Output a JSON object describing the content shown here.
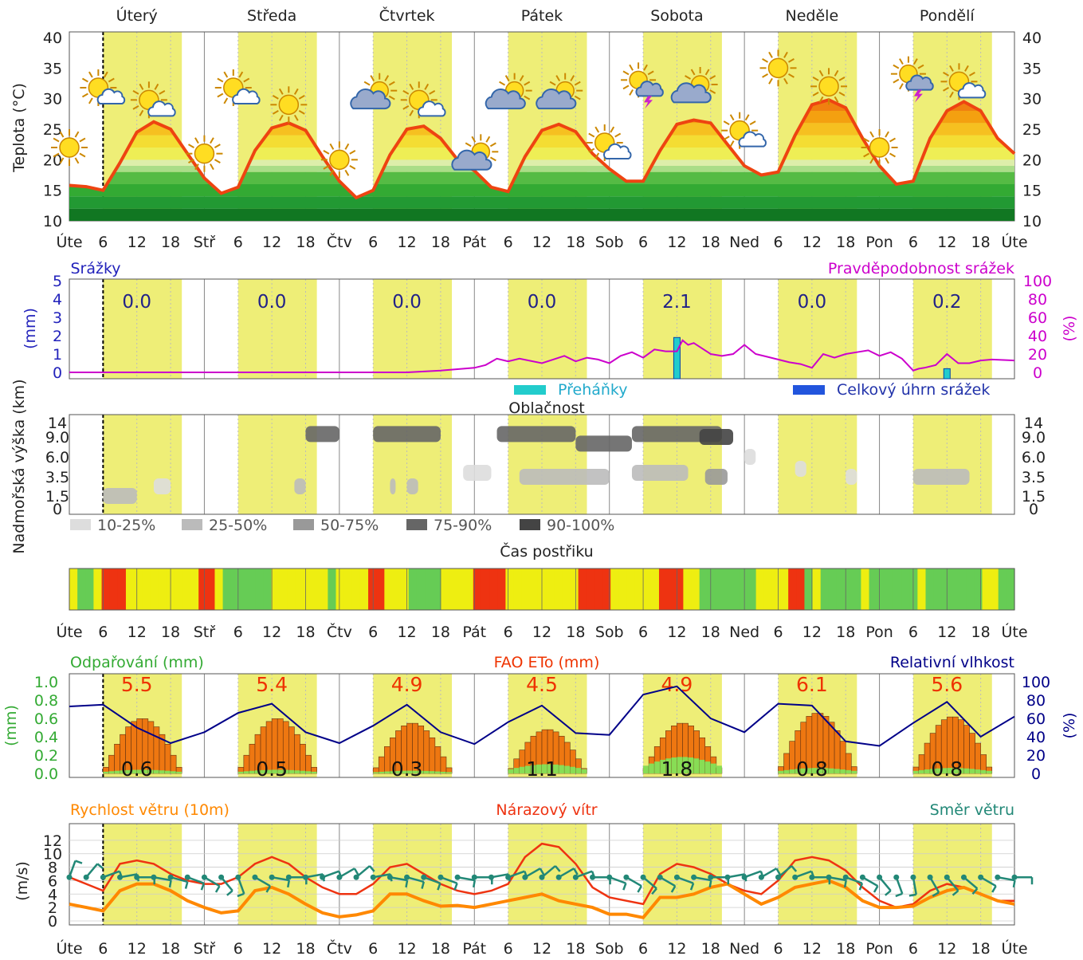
{
  "days": [
    "Úterý",
    "Středa",
    "Čtvrtek",
    "Pátek",
    "Sobota",
    "Neděle",
    "Pondělí"
  ],
  "x_ticks": [
    "Úte",
    "6",
    "12",
    "18",
    "Stř",
    "6",
    "12",
    "18",
    "Čtv",
    "6",
    "12",
    "18",
    "Pát",
    "6",
    "12",
    "18",
    "Sob",
    "6",
    "12",
    "18",
    "Ned",
    "6",
    "12",
    "18",
    "Pon",
    "6",
    "12",
    "18",
    "Úte"
  ],
  "colors": {
    "temp_line": "#ee4411",
    "day_band": "#eeee77",
    "precip": "#2222bb",
    "prob": "#cc00cc",
    "evap": "#33aa33",
    "eto": "#ee3300",
    "rh": "#000088",
    "wind": "#ff8800",
    "gust": "#ee3311",
    "dir": "#228877"
  },
  "chart_data": [
    {
      "type": "line",
      "id": "temperature",
      "ylabel": "Teplota (°C)",
      "ylim": [
        10,
        40
      ],
      "yticks": [
        10,
        15,
        20,
        25,
        30,
        35,
        40
      ],
      "x_unit": "hours from Tuesday 00:00",
      "xlim": [
        0,
        168
      ],
      "series": [
        {
          "x": [
            0,
            3,
            6,
            9,
            12,
            15,
            18,
            21,
            24,
            27,
            30,
            33,
            36,
            39,
            42,
            45,
            48,
            51,
            54,
            57,
            60,
            63,
            66,
            69,
            72,
            75,
            78,
            81,
            84,
            87,
            90,
            93,
            96,
            99,
            102,
            105,
            108,
            111,
            114,
            117,
            120,
            123,
            126,
            129,
            132,
            135,
            138,
            141,
            144,
            147,
            150,
            153,
            156,
            159,
            162,
            165,
            168
          ],
          "values": [
            15.8,
            15.6,
            15.0,
            19.5,
            24.5,
            26.2,
            25.0,
            21.0,
            17.0,
            14.5,
            15.5,
            21.5,
            25.2,
            26.0,
            24.8,
            20.5,
            16.5,
            13.8,
            15.0,
            20.8,
            25.0,
            25.5,
            23.5,
            20.0,
            18.2,
            15.5,
            14.8,
            20.5,
            24.8,
            25.8,
            24.6,
            21.0,
            18.5,
            16.5,
            16.5,
            21.5,
            25.8,
            26.5,
            26.0,
            22.5,
            19.0,
            17.5,
            18.0,
            24.0,
            29.0,
            29.8,
            28.5,
            23.5,
            19.0,
            16.0,
            16.5,
            23.5,
            28.0,
            29.5,
            28.0,
            23.5,
            21.0
          ]
        }
      ],
      "weather_icons": [
        {
          "t": 0,
          "temp": 22,
          "icon": "sun-icon"
        },
        {
          "t": 6,
          "temp": 31,
          "icon": "sun-cloud-icon"
        },
        {
          "t": 15,
          "temp": 29,
          "icon": "sun-cloud-icon"
        },
        {
          "t": 24,
          "temp": 21,
          "icon": "sun-icon"
        },
        {
          "t": 30,
          "temp": 31,
          "icon": "sun-cloud-icon"
        },
        {
          "t": 39,
          "temp": 29,
          "icon": "sun-icon"
        },
        {
          "t": 48,
          "temp": 20,
          "icon": "sun-icon"
        },
        {
          "t": 54,
          "temp": 30,
          "icon": "cloud-sun-icon"
        },
        {
          "t": 63,
          "temp": 29,
          "icon": "sun-cloud-icon"
        },
        {
          "t": 72,
          "temp": 20,
          "icon": "cloud-sun-icon"
        },
        {
          "t": 78,
          "temp": 30,
          "icon": "cloud-sun-icon"
        },
        {
          "t": 87,
          "temp": 30,
          "icon": "cloud-sun-icon"
        },
        {
          "t": 96,
          "temp": 22,
          "icon": "sun-cloud-icon"
        },
        {
          "t": 102,
          "temp": 32,
          "icon": "sun-storm-icon"
        },
        {
          "t": 111,
          "temp": 31,
          "icon": "cloud-sun-icon"
        },
        {
          "t": 120,
          "temp": 24,
          "icon": "sun-cloud-icon"
        },
        {
          "t": 126,
          "temp": 35,
          "icon": "sun-icon"
        },
        {
          "t": 135,
          "temp": 32,
          "icon": "sun-icon"
        },
        {
          "t": 144,
          "temp": 22,
          "icon": "sun-icon"
        },
        {
          "t": 150,
          "temp": 33,
          "icon": "sun-storm-icon"
        },
        {
          "t": 159,
          "temp": 32,
          "icon": "sun-cloud-icon"
        }
      ]
    },
    {
      "type": "bar",
      "id": "precipitation",
      "title": "Srážky",
      "right_title": "Pravděpodobnost srážek",
      "ylabel": "(mm)",
      "ylim": [
        0,
        5
      ],
      "yticks": [
        0,
        1,
        2,
        3,
        4,
        5
      ],
      "y2label": "(%)",
      "y2lim": [
        0,
        100
      ],
      "y2ticks": [
        0,
        20,
        40,
        60,
        80,
        100
      ],
      "daily_totals": [
        {
          "day_center": 12,
          "total": "0.0"
        },
        {
          "day_center": 36,
          "total": "0.0"
        },
        {
          "day_center": 60,
          "total": "0.0"
        },
        {
          "day_center": 84,
          "total": "0.0"
        },
        {
          "day_center": 108,
          "total": "2.1"
        },
        {
          "day_center": 132,
          "total": "0.0"
        },
        {
          "day_center": 156,
          "total": "0.2"
        }
      ],
      "bars": [
        {
          "t": 108,
          "value": 1.9
        },
        {
          "t": 156,
          "value": 0.2
        }
      ],
      "probability": {
        "x": [
          0,
          60,
          66,
          72,
          74,
          76,
          78,
          80,
          84,
          86,
          88,
          90,
          92,
          94,
          96,
          98,
          100,
          102,
          104,
          106,
          108,
          109,
          110,
          111,
          112,
          114,
          116,
          118,
          120,
          122,
          124,
          126,
          128,
          130,
          132,
          134,
          136,
          138,
          140,
          142,
          144,
          146,
          148,
          150,
          151,
          152,
          154,
          156,
          158,
          160,
          162,
          164,
          168
        ],
        "values": [
          0,
          0,
          2,
          5,
          8,
          15,
          12,
          15,
          10,
          14,
          18,
          12,
          16,
          14,
          10,
          18,
          22,
          16,
          25,
          23,
          23,
          35,
          30,
          32,
          28,
          20,
          18,
          20,
          30,
          20,
          17,
          14,
          11,
          9,
          5,
          20,
          16,
          20,
          22,
          24,
          18,
          22,
          15,
          2,
          4,
          5,
          8,
          20,
          10,
          10,
          13,
          14,
          13
        ]
      },
      "legend": [
        "Přeháňky",
        "Celkový úhrn srážek"
      ]
    },
    {
      "type": "heatmap",
      "id": "cloudiness",
      "title": "Oblačnost",
      "ylabel": "Nadmořská výška (km)",
      "yticks": [
        "0",
        "1.5",
        "3.5",
        "6.0",
        "9.0",
        "14"
      ],
      "legend": [
        "10-25%",
        "25-50%",
        "50-75%",
        "75-90%",
        "90-100%"
      ],
      "cells": [
        {
          "t0": 6,
          "t1": 12,
          "z": 1.5,
          "cov": 2
        },
        {
          "t0": 15,
          "t1": 18,
          "z": 2.5,
          "cov": 1
        },
        {
          "t0": 42,
          "t1": 48,
          "z": 10,
          "cov": 4
        },
        {
          "t0": 40,
          "t1": 42,
          "z": 2.5,
          "cov": 2
        },
        {
          "t0": 54,
          "t1": 66,
          "z": 10,
          "cov": 4
        },
        {
          "t0": 57,
          "t1": 58,
          "z": 2.5,
          "cov": 2
        },
        {
          "t0": 60,
          "t1": 62,
          "z": 2.5,
          "cov": 2
        },
        {
          "t0": 70,
          "t1": 75,
          "z": 4,
          "cov": 1
        },
        {
          "t0": 76,
          "t1": 90,
          "z": 10,
          "cov": 4
        },
        {
          "t0": 80,
          "t1": 96,
          "z": 3.5,
          "cov": 2
        },
        {
          "t0": 90,
          "t1": 100,
          "z": 8,
          "cov": 4
        },
        {
          "t0": 100,
          "t1": 116,
          "z": 10,
          "cov": 4
        },
        {
          "t0": 100,
          "t1": 110,
          "z": 4,
          "cov": 2
        },
        {
          "t0": 112,
          "t1": 118,
          "z": 9,
          "cov": 5
        },
        {
          "t0": 113,
          "t1": 117,
          "z": 3.5,
          "cov": 3
        },
        {
          "t0": 120,
          "t1": 122,
          "z": 6,
          "cov": 1
        },
        {
          "t0": 129,
          "t1": 131,
          "z": 4.5,
          "cov": 1
        },
        {
          "t0": 138,
          "t1": 140,
          "z": 3.5,
          "cov": 1
        },
        {
          "t0": 150,
          "t1": 160,
          "z": 3.5,
          "cov": 2
        }
      ]
    },
    {
      "type": "table",
      "id": "spray_time",
      "title": "Čas postřiku",
      "slot_hours": 3,
      "values": [
        "yellow",
        "green",
        "green",
        "yellow",
        "red",
        "red",
        "red",
        "yellow",
        "yellow",
        "yellow",
        "yellow",
        "yellow",
        "yellow",
        "yellow",
        "yellow",
        "yellow",
        "red",
        "red",
        "yellow",
        "green",
        "green",
        "green",
        "green",
        "green",
        "green",
        "yellow",
        "yellow",
        "yellow",
        "yellow",
        "yellow",
        "yellow",
        "yellow",
        "green",
        "yellow",
        "yellow",
        "yellow",
        "yellow",
        "red",
        "red",
        "yellow",
        "yellow",
        "yellow",
        "green",
        "green",
        "green",
        "green",
        "yellow",
        "yellow",
        "yellow",
        "yellow",
        "red",
        "red",
        "red",
        "red",
        "yellow",
        "yellow",
        "yellow",
        "yellow",
        "yellow",
        "yellow",
        "yellow",
        "yellow",
        "yellow",
        "red",
        "red",
        "red",
        "red",
        "yellow",
        "yellow",
        "yellow",
        "yellow",
        "yellow",
        "yellow",
        "red",
        "red",
        "red",
        "yellow",
        "yellow",
        "green",
        "green",
        "green",
        "green",
        "green",
        "green",
        "green",
        "yellow",
        "yellow",
        "yellow",
        "yellow",
        "red",
        "red",
        "green",
        "yellow",
        "green",
        "green",
        "green",
        "green",
        "green",
        "yellow",
        "green",
        "green",
        "green",
        "green",
        "green",
        "green",
        "yellow",
        "green",
        "green",
        "green",
        "green",
        "green",
        "green",
        "green",
        "yellow",
        "yellow",
        "green",
        "green"
      ]
    },
    {
      "type": "bar",
      "id": "evaporation",
      "title": "Odpařování (mm)",
      "center_title": "FAO ETo (mm)",
      "right_title": "Relativní vlhkost",
      "ylabel": "(mm)",
      "ylim": [
        0,
        1.0
      ],
      "yticks": [
        "0.0",
        "0.2",
        "0.4",
        "0.6",
        "0.8",
        "1.0"
      ],
      "y2label": "(%)",
      "y2ticks": [
        0,
        20,
        40,
        60,
        80,
        100
      ],
      "eto_daily": [
        "5.5",
        "5.4",
        "4.9",
        "4.5",
        "4.9",
        "6.1",
        "5.6"
      ],
      "evap_daily": [
        "0.6",
        "0.5",
        "0.3",
        "1.1",
        "1.8",
        "0.8",
        "0.8"
      ],
      "eto_peak": [
        0.6,
        0.6,
        0.55,
        0.48,
        0.55,
        0.66,
        0.62
      ],
      "evap_peak": [
        0.04,
        0.04,
        0.03,
        0.1,
        0.18,
        0.06,
        0.06
      ],
      "rh": {
        "x": [
          0,
          6,
          12,
          18,
          24,
          30,
          36,
          42,
          48,
          54,
          60,
          66,
          72,
          78,
          84,
          90,
          96,
          102,
          108,
          114,
          120,
          126,
          132,
          138,
          144,
          150,
          156,
          162,
          168
        ],
        "values": [
          73,
          75,
          50,
          33,
          45,
          66,
          76,
          45,
          33,
          52,
          75,
          45,
          32,
          56,
          74,
          44,
          42,
          86,
          95,
          60,
          45,
          76,
          74,
          35,
          30,
          55,
          78,
          40,
          62
        ]
      }
    },
    {
      "type": "line",
      "id": "wind",
      "title": "Rychlost větru (10m)",
      "center_title": "Nárazový vítr",
      "right_title": "Směr větru",
      "ylabel": "(m/s)",
      "ylim": [
        0,
        14
      ],
      "yticks": [
        0,
        2,
        4,
        6,
        8,
        10,
        12
      ],
      "series": [
        {
          "id": "wind",
          "x": [
            0,
            3,
            6,
            9,
            12,
            15,
            18,
            21,
            24,
            27,
            30,
            33,
            36,
            39,
            42,
            45,
            48,
            51,
            54,
            57,
            60,
            63,
            66,
            69,
            72,
            75,
            78,
            81,
            84,
            87,
            90,
            93,
            96,
            99,
            102,
            105,
            108,
            111,
            114,
            117,
            120,
            123,
            126,
            129,
            132,
            135,
            138,
            141,
            144,
            147,
            150,
            153,
            156,
            159,
            162,
            165,
            168
          ],
          "values": [
            2.5,
            2.0,
            1.5,
            4.5,
            5.5,
            5.5,
            4.5,
            3.0,
            2.0,
            1.2,
            1.5,
            4.5,
            5.0,
            4.0,
            2.5,
            1.2,
            0.6,
            0.9,
            1.5,
            4.0,
            4.0,
            3.0,
            2.2,
            2.3,
            2.0,
            2.5,
            3.0,
            3.5,
            4.0,
            3.0,
            2.5,
            2.0,
            1.0,
            1.0,
            0.5,
            3.5,
            3.5,
            4.0,
            5.0,
            5.5,
            4.0,
            2.5,
            3.5,
            5.0,
            5.5,
            6.0,
            5.0,
            3.0,
            2.0,
            2.0,
            2.2,
            3.5,
            4.5,
            5.0,
            4.0,
            3.0,
            2.5
          ]
        },
        {
          "id": "gust",
          "x": [
            0,
            3,
            6,
            9,
            12,
            15,
            18,
            21,
            24,
            27,
            30,
            33,
            36,
            39,
            42,
            45,
            48,
            51,
            54,
            57,
            60,
            63,
            66,
            69,
            72,
            75,
            78,
            81,
            84,
            87,
            90,
            93,
            96,
            99,
            102,
            105,
            108,
            111,
            114,
            117,
            120,
            123,
            126,
            129,
            132,
            135,
            138,
            141,
            144,
            147,
            150,
            153,
            156,
            159,
            162,
            165,
            168
          ],
          "values": [
            6.5,
            5.5,
            4.5,
            8.5,
            9.0,
            8.5,
            7.0,
            6.0,
            5.5,
            5.5,
            6.5,
            8.5,
            9.5,
            8.5,
            6.5,
            5.0,
            4.0,
            4.0,
            5.5,
            8.0,
            8.5,
            7.0,
            5.5,
            4.5,
            4.0,
            4.5,
            5.5,
            9.5,
            11.5,
            11.0,
            8.5,
            5.0,
            3.5,
            3.0,
            2.5,
            7.0,
            8.5,
            8.0,
            7.0,
            5.5,
            4.5,
            4.0,
            6.0,
            9.0,
            9.5,
            9.0,
            7.5,
            5.0,
            3.0,
            2.0,
            2.5,
            4.5,
            5.5,
            5.0,
            4.0,
            3.0,
            3.0
          ]
        }
      ],
      "direction_deg": [
        200,
        220,
        250,
        260,
        270,
        280,
        285,
        290,
        300,
        320,
        340,
        300,
        280,
        270,
        260,
        250,
        240,
        230,
        260,
        280,
        285,
        290,
        290,
        280,
        270,
        260,
        250,
        240,
        230,
        240,
        250,
        270,
        290,
        300,
        310,
        300,
        290,
        280,
        270,
        260,
        250,
        240,
        230,
        250,
        270,
        280,
        290,
        300,
        320,
        340,
        350,
        330,
        320,
        310,
        300,
        280,
        270
      ]
    }
  ]
}
